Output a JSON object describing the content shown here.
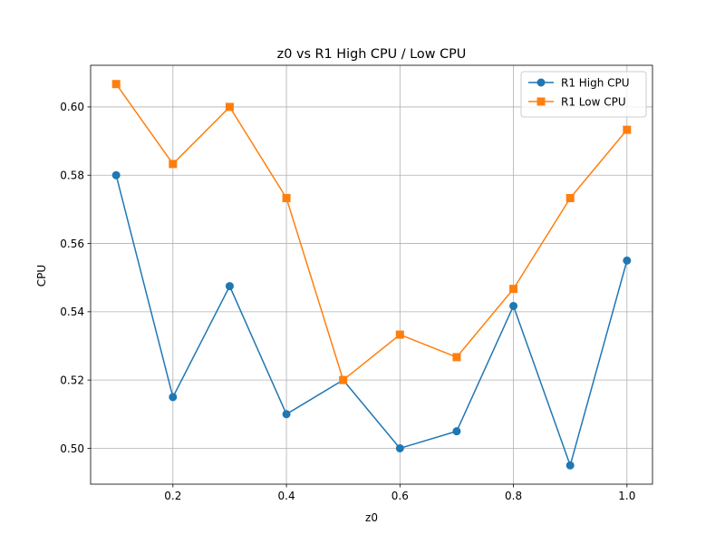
{
  "chart_data": {
    "type": "line",
    "title": "z0 vs R1 High CPU / Low CPU",
    "xlabel": "z0",
    "ylabel": "CPU",
    "xlim": [
      0.055,
      1.045
    ],
    "ylim": [
      0.4895,
      0.6122
    ],
    "xticks": [
      0.2,
      0.4,
      0.6,
      0.8,
      1.0
    ],
    "xtick_labels": [
      "0.2",
      "0.4",
      "0.6",
      "0.8",
      "1.0"
    ],
    "yticks": [
      0.5,
      0.52,
      0.54,
      0.56,
      0.58,
      0.6
    ],
    "ytick_labels": [
      "0.50",
      "0.52",
      "0.54",
      "0.56",
      "0.58",
      "0.60"
    ],
    "grid": true,
    "legend_position": "top-right",
    "x": [
      0.1,
      0.2,
      0.3,
      0.4,
      0.5,
      0.6,
      0.7,
      0.8,
      0.9,
      1.0
    ],
    "series": [
      {
        "name": "R1 High CPU",
        "color": "#1f77b4",
        "marker": "circle",
        "values": [
          0.58,
          0.515,
          0.5475,
          0.51,
          0.52,
          0.5,
          0.505,
          0.5417,
          0.495,
          0.555
        ]
      },
      {
        "name": "R1 Low CPU",
        "color": "#ff7f0e",
        "marker": "square",
        "values": [
          0.6067,
          0.5833,
          0.6,
          0.5733,
          0.52,
          0.5333,
          0.5267,
          0.5467,
          0.5733,
          0.5933
        ]
      }
    ]
  }
}
